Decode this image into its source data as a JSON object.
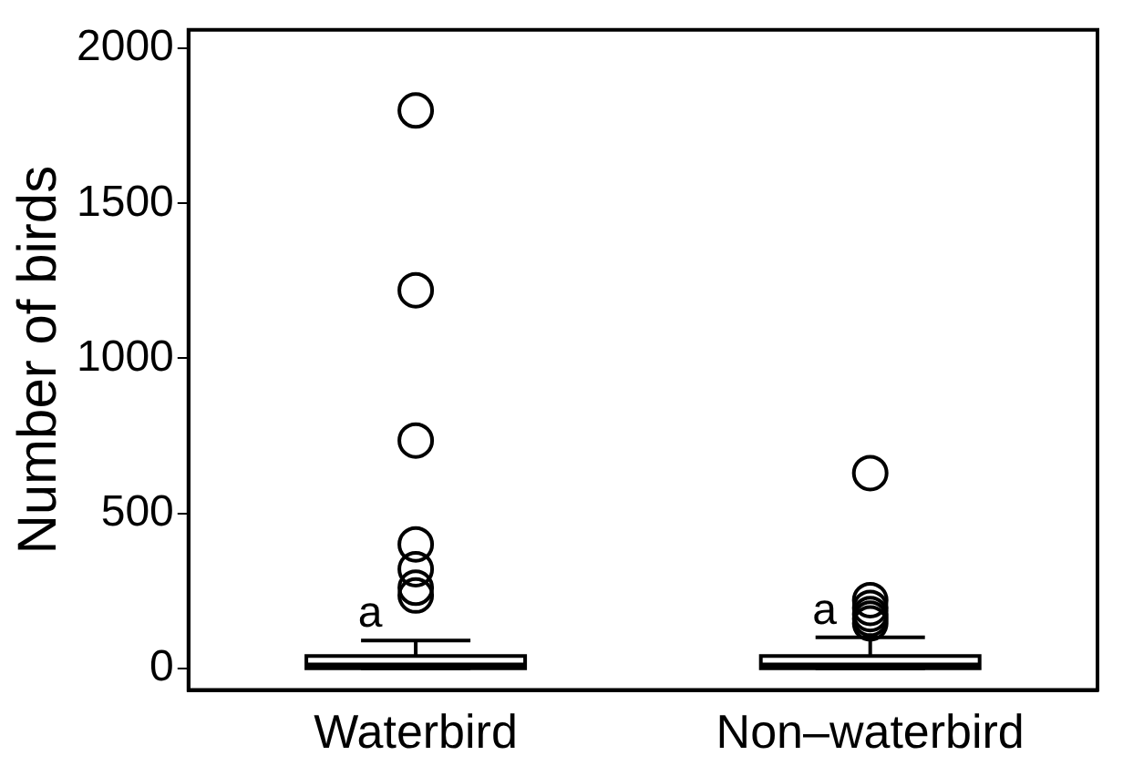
{
  "chart_data": {
    "type": "box",
    "categories": [
      "Waterbird",
      "Non–waterbird"
    ],
    "ylabel": "Number of birds",
    "ylim": [
      -70,
      2060
    ],
    "yticks": [
      0,
      500,
      1000,
      1500,
      2000
    ],
    "grid": false,
    "boxes": [
      {
        "low": 0,
        "q1": 0,
        "median": 10,
        "q3": 40,
        "high": 90,
        "outliers": [
          235,
          260,
          320,
          400,
          735,
          1220,
          1800
        ]
      },
      {
        "low": 0,
        "q1": 0,
        "median": 10,
        "q3": 40,
        "high": 100,
        "outliers": [
          145,
          160,
          175,
          195,
          220,
          630
        ]
      }
    ],
    "annotations": [
      "a",
      "a"
    ]
  }
}
